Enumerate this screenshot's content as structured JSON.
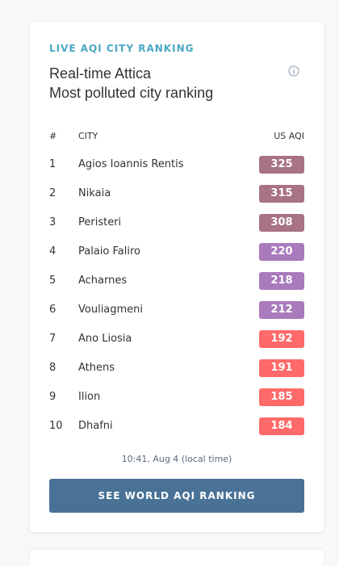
{
  "widget": {
    "eyebrow": "LIVE AQI CITY RANKING",
    "title_line1": "Real-time Attica",
    "title_line2": "Most polluted city ranking",
    "info_icon": "info-circle-icon"
  },
  "table": {
    "headers": {
      "rank": "#",
      "city": "CITY",
      "aqi": "US AQI"
    },
    "rows": [
      {
        "rank": "1",
        "city": "Agios Ioannis Rentis",
        "aqi": "325",
        "color": "#a87383"
      },
      {
        "rank": "2",
        "city": "Nikaia",
        "aqi": "315",
        "color": "#a87383"
      },
      {
        "rank": "3",
        "city": "Peristeri",
        "aqi": "308",
        "color": "#a87383"
      },
      {
        "rank": "4",
        "city": "Palaio Faliro",
        "aqi": "220",
        "color": "#a97abc"
      },
      {
        "rank": "5",
        "city": "Acharnes",
        "aqi": "218",
        "color": "#a97abc"
      },
      {
        "rank": "6",
        "city": "Vouliagmeni",
        "aqi": "212",
        "color": "#a97abc"
      },
      {
        "rank": "7",
        "city": "Ano Liosia",
        "aqi": "192",
        "color": "#fe6a69"
      },
      {
        "rank": "8",
        "city": "Athens",
        "aqi": "191",
        "color": "#fe6a69"
      },
      {
        "rank": "9",
        "city": "Ilion",
        "aqi": "185",
        "color": "#fe6a69"
      },
      {
        "rank": "10",
        "city": "Dhafni",
        "aqi": "184",
        "color": "#fe6a69"
      }
    ]
  },
  "footer": {
    "timestamp": "10:41, Aug 4 (local time)",
    "button_label": "SEE WORLD AQI RANKING",
    "button_color": "#4a7297"
  }
}
